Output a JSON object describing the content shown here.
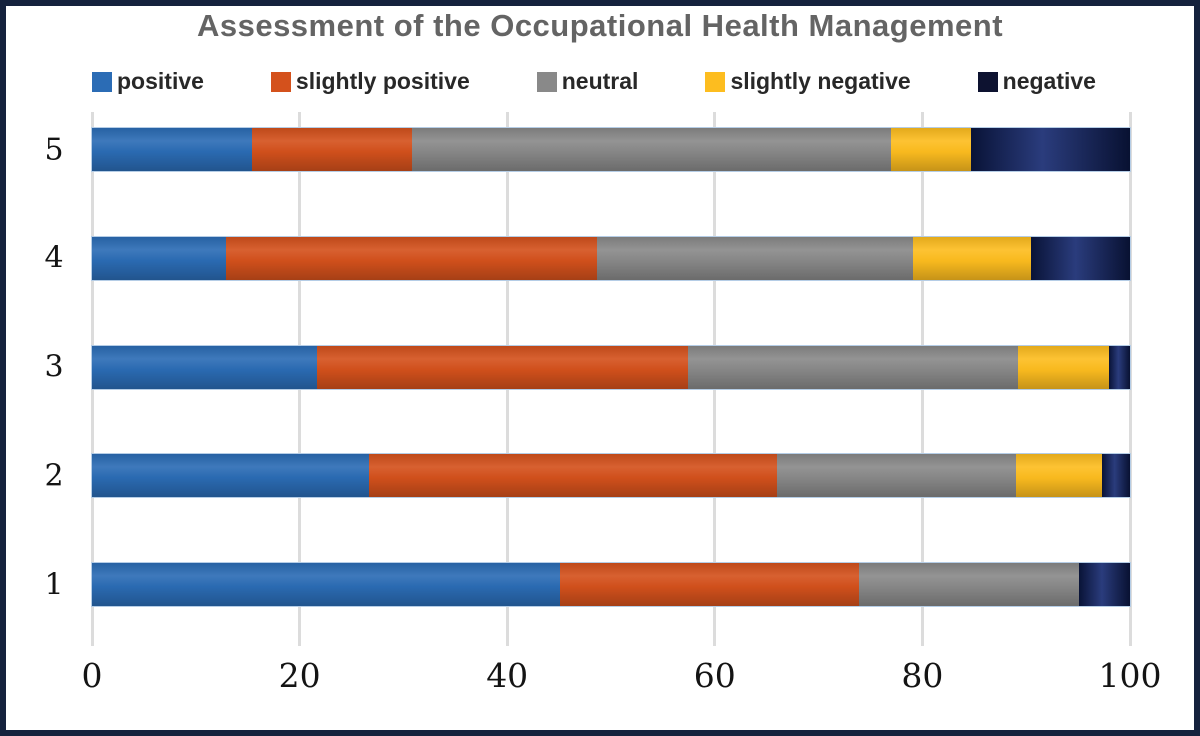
{
  "title": "Assessment of the Occupational Health Management",
  "colors": {
    "frame_border": "#15223d",
    "background": "#ffffff",
    "title_text": "#646464",
    "grid_line": "#dcdcdc",
    "tick_text": "#141414",
    "legend_text": "#282828",
    "bar_outline": "#b5cde6"
  },
  "chart_data": {
    "type": "bar",
    "orientation": "horizontal",
    "stacked": true,
    "stack_unit": "percent",
    "title": "Assessment of the Occupational Health Management",
    "categories": [
      "5",
      "4",
      "3",
      "2",
      "1"
    ],
    "series": [
      {
        "name": "positive",
        "color": "#2b6cb5",
        "values": [
          15.4,
          12.9,
          21.7,
          26.7,
          45.1
        ]
      },
      {
        "name": "slightly positive",
        "color": "#d4511c",
        "values": [
          15.4,
          35.8,
          35.7,
          39.3,
          28.8
        ]
      },
      {
        "name": "neutral",
        "color": "#898989",
        "values": [
          46.2,
          30.4,
          31.8,
          23.0,
          21.2
        ]
      },
      {
        "name": "slightly negative",
        "color": "#fdbd1f",
        "values": [
          7.7,
          11.4,
          8.8,
          8.3,
          0
        ]
      },
      {
        "name": "negative",
        "color": "#12266e",
        "values": [
          15.3,
          9.5,
          2.0,
          2.7,
          4.9
        ]
      }
    ],
    "xlim": [
      0,
      100
    ],
    "xticks": [
      0,
      20,
      40,
      60,
      80,
      100
    ],
    "grid": true,
    "legend_position": "top"
  }
}
